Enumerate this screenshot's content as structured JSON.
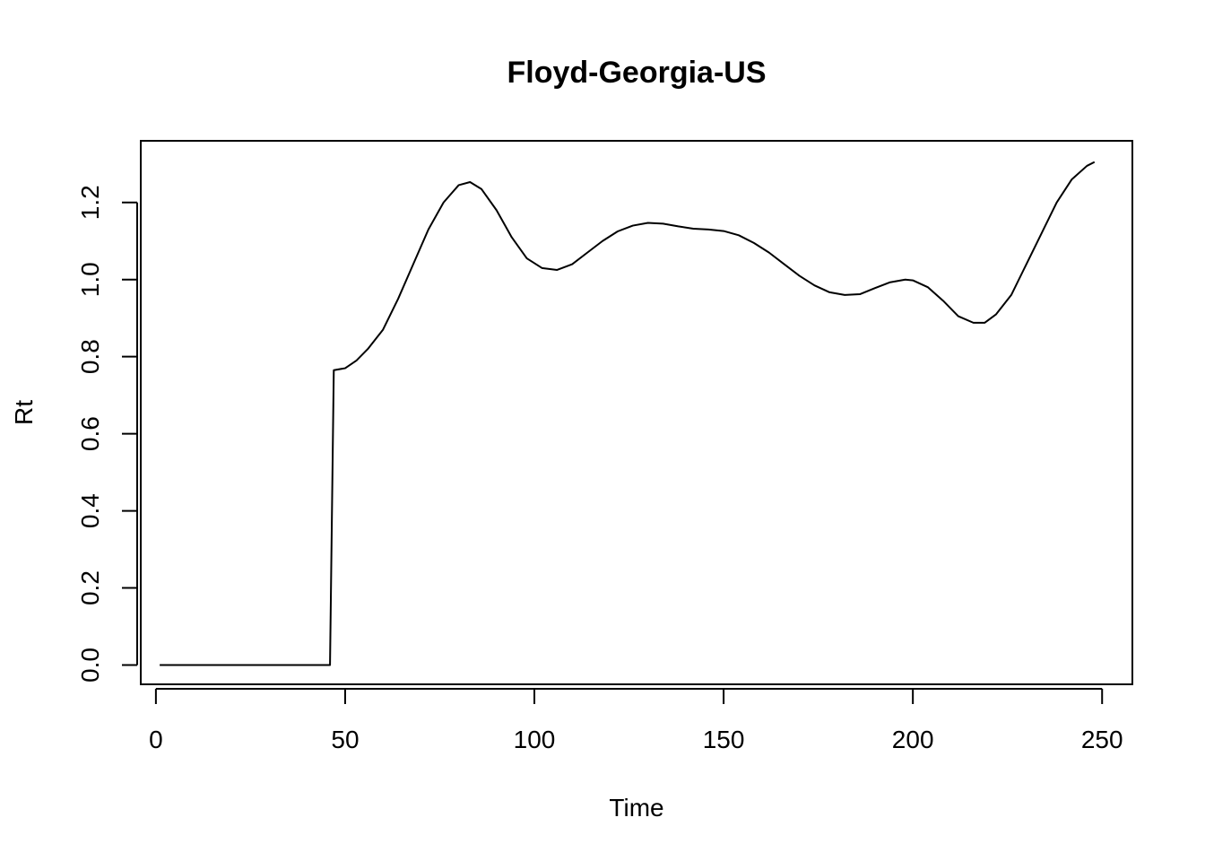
{
  "chart_data": {
    "type": "line",
    "title": "Floyd-Georgia-US",
    "xlabel": "Time",
    "ylabel": "Rt",
    "xlim": [
      -4,
      258
    ],
    "ylim": [
      -0.05,
      1.36
    ],
    "grid": false,
    "legend": "none",
    "x_ticks": [
      0,
      50,
      100,
      150,
      200,
      250
    ],
    "x_tick_labels": [
      "0",
      "50",
      "100",
      "150",
      "200",
      "250"
    ],
    "y_ticks": [
      0.0,
      0.2,
      0.4,
      0.6,
      0.8,
      1.0,
      1.2
    ],
    "y_tick_labels": [
      "0.0",
      "0.2",
      "0.4",
      "0.6",
      "0.8",
      "1.0",
      "1.2"
    ],
    "line_color": "#000000",
    "series": [
      {
        "x": [
          1,
          10,
          20,
          30,
          40,
          46,
          47,
          50,
          53,
          56,
          60,
          64,
          68,
          72,
          76,
          80,
          83,
          86,
          90,
          94,
          98,
          102,
          106,
          110,
          114,
          118,
          122,
          126,
          130,
          134,
          138,
          142,
          146,
          150,
          154,
          158,
          162,
          166,
          170,
          174,
          178,
          182,
          186,
          190,
          194,
          198,
          200,
          204,
          208,
          212,
          216,
          219,
          222,
          226,
          230,
          234,
          238,
          242,
          246,
          248
        ],
        "y": [
          0.0,
          0.0,
          0.0,
          0.0,
          0.0,
          0.0,
          0.765,
          0.77,
          0.79,
          0.82,
          0.87,
          0.95,
          1.04,
          1.13,
          1.2,
          1.245,
          1.253,
          1.235,
          1.18,
          1.11,
          1.055,
          1.03,
          1.025,
          1.04,
          1.07,
          1.1,
          1.125,
          1.14,
          1.147,
          1.145,
          1.138,
          1.132,
          1.13,
          1.126,
          1.115,
          1.095,
          1.07,
          1.04,
          1.01,
          0.985,
          0.967,
          0.96,
          0.962,
          0.978,
          0.993,
          1.0,
          0.998,
          0.98,
          0.945,
          0.905,
          0.888,
          0.888,
          0.91,
          0.96,
          1.04,
          1.12,
          1.2,
          1.26,
          1.295,
          1.305
        ]
      }
    ]
  }
}
